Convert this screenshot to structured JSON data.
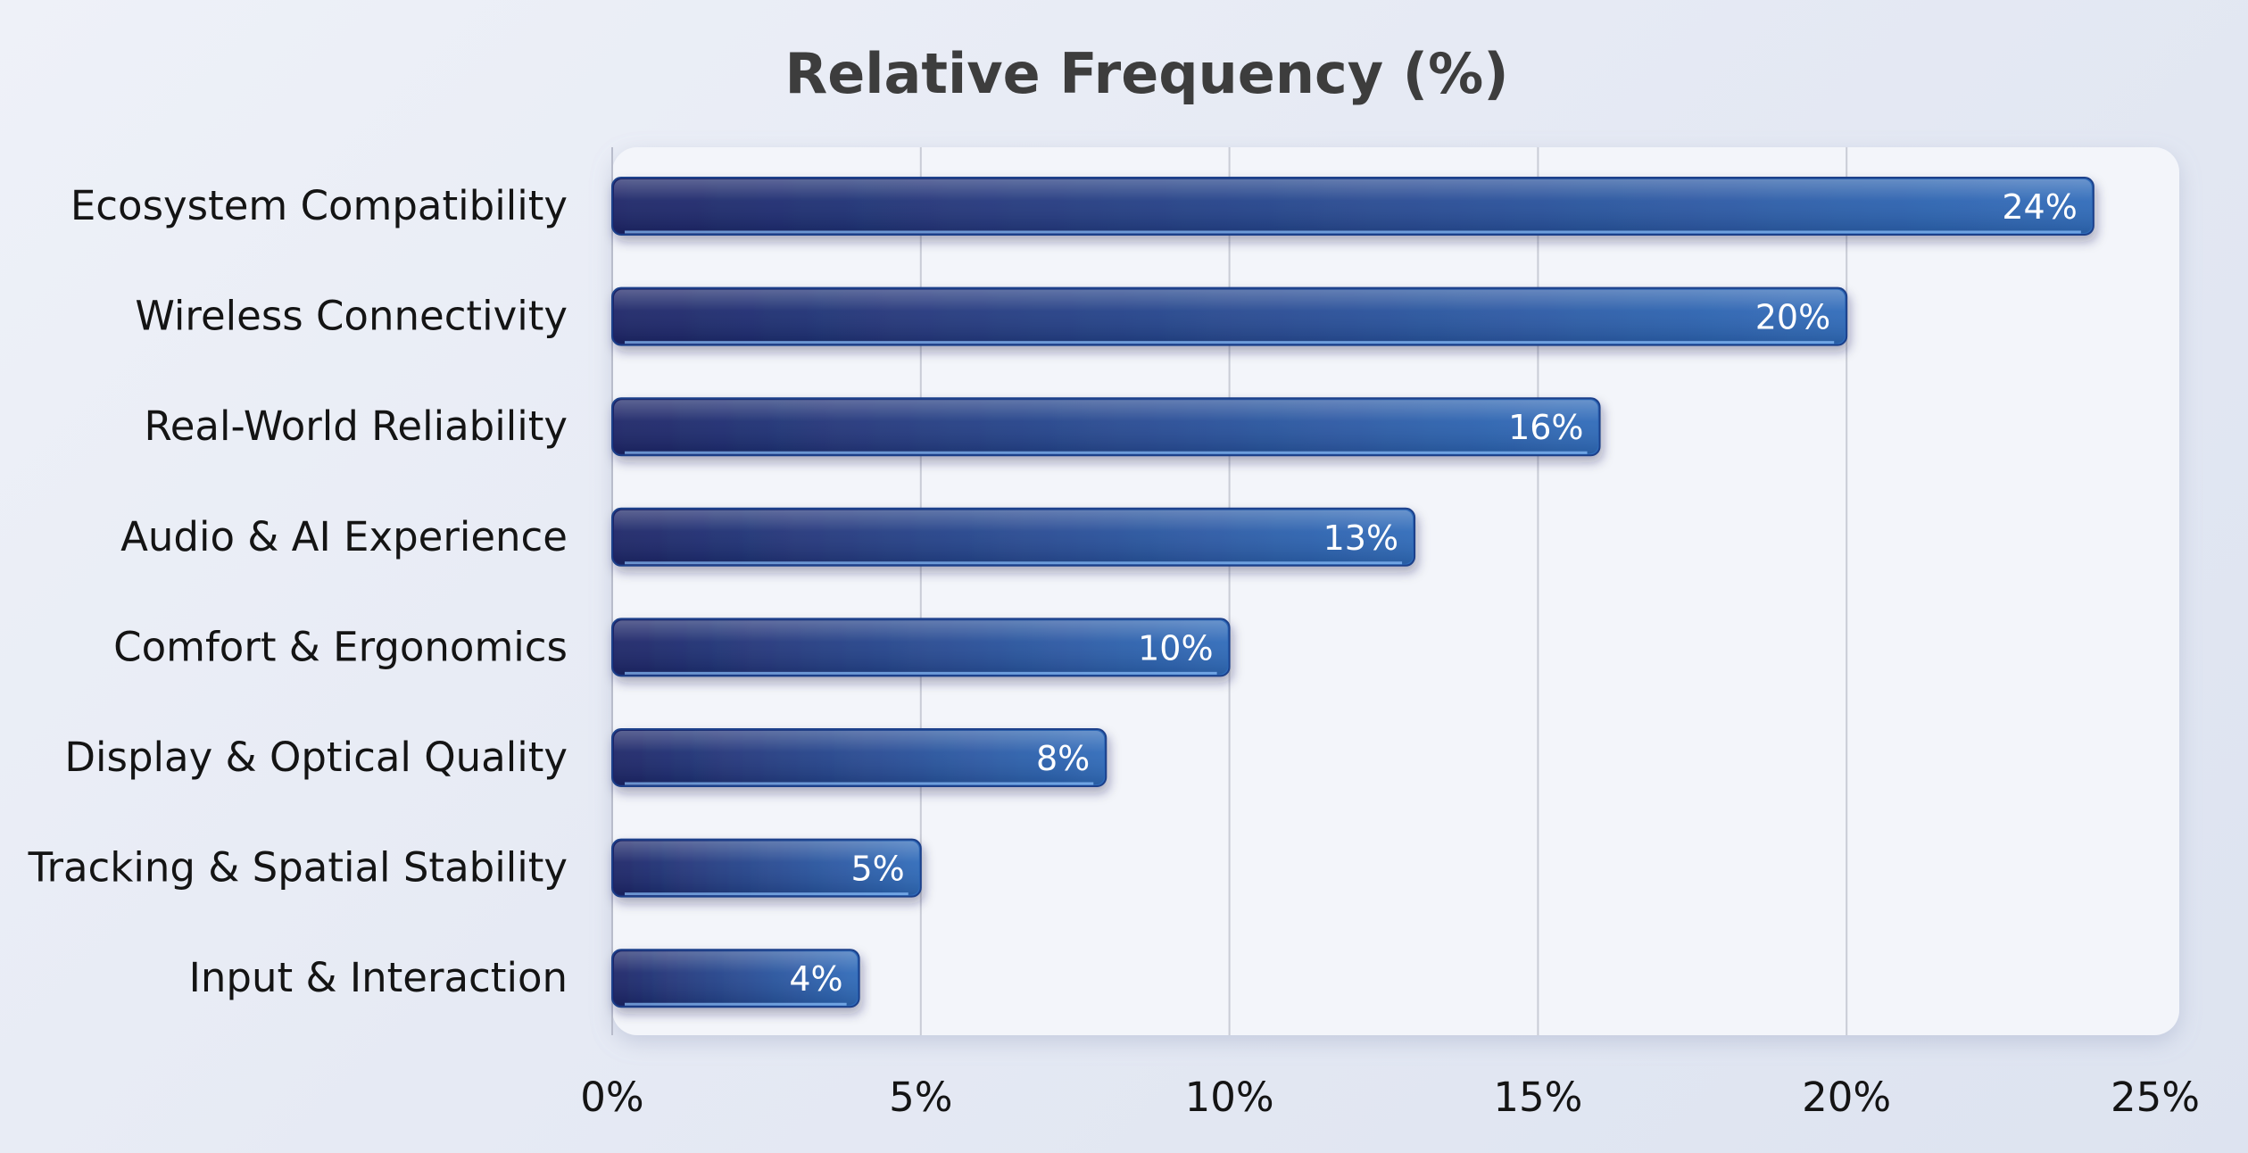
{
  "chart_data": {
    "type": "bar",
    "orientation": "horizontal",
    "title": "Relative Frequency (%)",
    "xlabel": "",
    "ylabel": "",
    "categories": [
      "Ecosystem Compatibility",
      "Wireless Connectivity",
      "Real-World Reliability",
      "Audio & AI Experience",
      "Comfort & Ergonomics",
      "Display & Optical Quality",
      "Tracking & Spatial Stability",
      "Input & Interaction"
    ],
    "values": [
      24,
      20,
      16,
      13,
      10,
      8,
      5,
      4
    ],
    "value_labels": [
      "24%",
      "20%",
      "16%",
      "13%",
      "10%",
      "8%",
      "5%",
      "4%"
    ],
    "xlim": [
      0,
      25
    ],
    "x_ticks": [
      0,
      5,
      10,
      15,
      20,
      25
    ],
    "x_tick_labels": [
      "0%",
      "5%",
      "10%",
      "15%",
      "20%",
      "25%"
    ],
    "grid": true,
    "legend": "none",
    "colors": {
      "bar_dark": "#1c2466",
      "bar_light": "#2e6ab9",
      "bar_border": "#1a3f8a",
      "grid": "#c9ccd6",
      "text": "#141414",
      "title": "#3d3d3d"
    }
  }
}
